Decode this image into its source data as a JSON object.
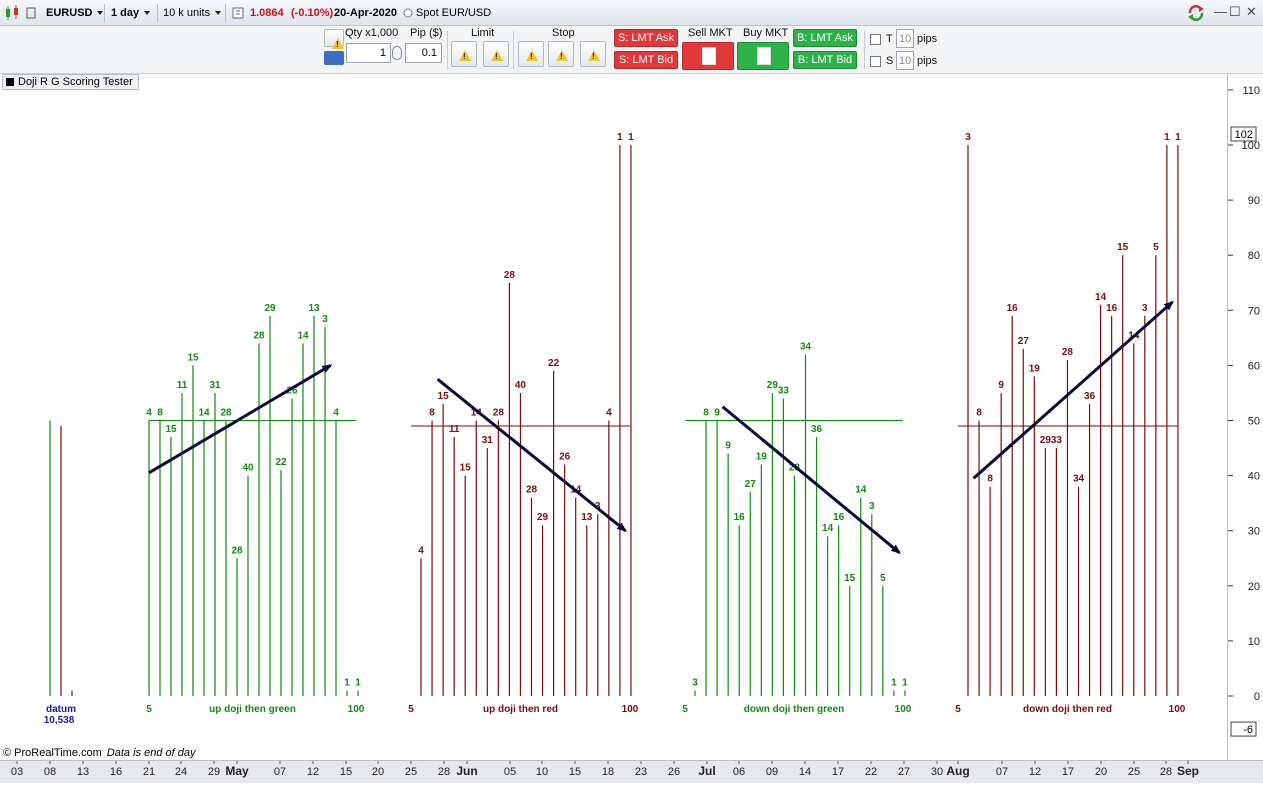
{
  "topbar": {
    "symbol": "EURUSD",
    "timeframe": "1 day",
    "units": "10 k units",
    "price": "1.0864",
    "change": "(-0.10%)",
    "date": "20-Apr-2020",
    "spot_label": "Spot EUR/USD"
  },
  "order_bar": {
    "qty_label": "Qty x1,000",
    "qty_value": "1",
    "pip_label": "Pip ($)",
    "pip_value": "0.1",
    "limit_label": "Limit",
    "stop_label": "Stop",
    "s_lmt_ask": "S: LMT Ask",
    "s_lmt_bid": "S: LMT Bid",
    "sell_mkt": "Sell MKT",
    "buy_mkt": "Buy MKT",
    "b_lmt_ask": "B: LMT Ask",
    "b_lmt_bid": "B: LMT Bid",
    "t_label": "T",
    "t_value": "10",
    "s_label": "S",
    "s_value": "10",
    "pips_label": "pips"
  },
  "indicator": {
    "name": "Doji R G Scoring Tester"
  },
  "footer": {
    "brand": "© ProRealTime.com",
    "note": "Data is end of day"
  },
  "colors": {
    "green": "#138a13",
    "red": "#7a0c0c",
    "arrow": "#0b0b3b",
    "datum": "#1a1aa8"
  },
  "chart_data": {
    "type": "bar",
    "y_ticks": [
      0,
      10,
      20,
      30,
      40,
      50,
      60,
      70,
      80,
      90,
      100,
      110
    ],
    "ylim": [
      -3,
      111
    ],
    "y_markers": [
      "102",
      "-6"
    ],
    "x_ticks": [
      "03",
      "08",
      "13",
      "16",
      "21",
      "24",
      "29",
      "May",
      "07",
      "12",
      "15",
      "20",
      "25",
      "28",
      "Jun",
      "05",
      "10",
      "15",
      "18",
      "23",
      "26",
      "Jul",
      "06",
      "09",
      "14",
      "17",
      "22",
      "27",
      "30",
      "Aug",
      "07",
      "12",
      "17",
      "20",
      "25",
      "28",
      "Sep"
    ],
    "datum": {
      "label": "datum",
      "value": "10,538",
      "bars": [
        50,
        49,
        1
      ]
    },
    "panels": [
      {
        "name": "up doji then green",
        "color": "green",
        "reference": 50,
        "left_label": "5",
        "right_label": "100",
        "values": [
          50,
          50,
          47,
          55,
          60,
          50,
          55,
          50,
          25,
          40,
          64,
          69,
          41,
          54,
          64,
          69,
          67,
          50,
          1,
          1
        ],
        "labels": [
          "4",
          "8",
          "15",
          "11",
          "15",
          "14",
          "31",
          "28",
          "28",
          "40",
          "28",
          "29",
          "22",
          "26",
          "14",
          "13",
          "3",
          "4",
          "1",
          "1"
        ]
      },
      {
        "name": "up doji then red",
        "color": "red",
        "reference": 49,
        "left_label": "5",
        "right_label": "100",
        "values": [
          25,
          50,
          53,
          47,
          40,
          50,
          45,
          50,
          75,
          55,
          36,
          31,
          59,
          42,
          36,
          31,
          33,
          50,
          100,
          100
        ],
        "labels": [
          "4",
          "8",
          "15",
          "11",
          "15",
          "14",
          "31",
          "28",
          "28",
          "40",
          "28",
          "29",
          "22",
          "26",
          "14",
          "13",
          "3",
          "4",
          "1",
          "1"
        ]
      },
      {
        "name": "down doji then green",
        "color": "green",
        "reference": 50,
        "left_label": "5",
        "right_label": "100",
        "values": [
          1,
          50,
          50,
          44,
          31,
          37,
          42,
          55,
          54,
          40,
          62,
          47,
          29,
          31,
          20,
          36,
          33,
          20,
          1,
          1
        ],
        "labels": [
          "3",
          "8",
          "9",
          "9",
          "16",
          "27",
          "19",
          "29",
          "33",
          "28",
          "34",
          "36",
          "14",
          "16",
          "15",
          "14",
          "3",
          "5",
          "1",
          "1"
        ]
      },
      {
        "name": "down doji then red",
        "color": "red",
        "reference": 49,
        "left_label": "5",
        "right_label": "100",
        "values": [
          100,
          50,
          38,
          55,
          69,
          63,
          58,
          45,
          45,
          61,
          38,
          53,
          71,
          69,
          80,
          64,
          69,
          80,
          100,
          100
        ],
        "labels": [
          "3",
          "8",
          "8",
          "9",
          "16",
          "27",
          "19",
          "29",
          "33",
          "28",
          "34",
          "36",
          "14",
          "16",
          "15",
          "14",
          "3",
          "5",
          "1",
          "1"
        ]
      }
    ],
    "trend_arrows": [
      {
        "panel": "up doji then green",
        "from": [
          0,
          40.5
        ],
        "to": [
          16.5,
          60
        ]
      },
      {
        "panel": "up doji then red",
        "from": [
          1.5,
          57.5
        ],
        "to": [
          18.5,
          30
        ]
      },
      {
        "panel": "down doji then green",
        "from": [
          2.5,
          52.5
        ],
        "to": [
          18.5,
          26
        ]
      },
      {
        "panel": "down doji then red",
        "from": [
          0.5,
          39.5
        ],
        "to": [
          18.5,
          71.5
        ]
      }
    ]
  }
}
